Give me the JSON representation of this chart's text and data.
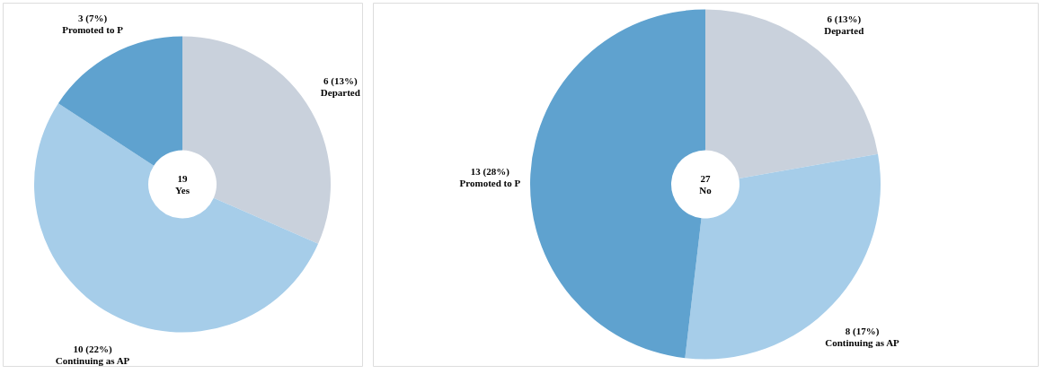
{
  "chart_data": [
    {
      "type": "donut",
      "annotations": [
        "19",
        "Yes"
      ],
      "categories": [
        "Departed",
        "Continuing as AP",
        "Promoted to P"
      ],
      "values": [
        6,
        10,
        3
      ],
      "value_labels": [
        "6 (13%)",
        "10 (22%)",
        "3 (7%)"
      ],
      "colors": [
        "#c9d1dc",
        "#a6cde9",
        "#5fa2cf"
      ],
      "legend": false
    },
    {
      "type": "donut",
      "annotations": [
        "27",
        "No"
      ],
      "categories": [
        "Departed",
        "Continuing as AP",
        "Promoted to P"
      ],
      "values": [
        6,
        8,
        13
      ],
      "value_labels": [
        "6 (13%)",
        "8 (17%)",
        "13 (28%)"
      ],
      "colors": [
        "#c9d1dc",
        "#a6cde9",
        "#5fa2cf"
      ],
      "legend": false
    }
  ]
}
